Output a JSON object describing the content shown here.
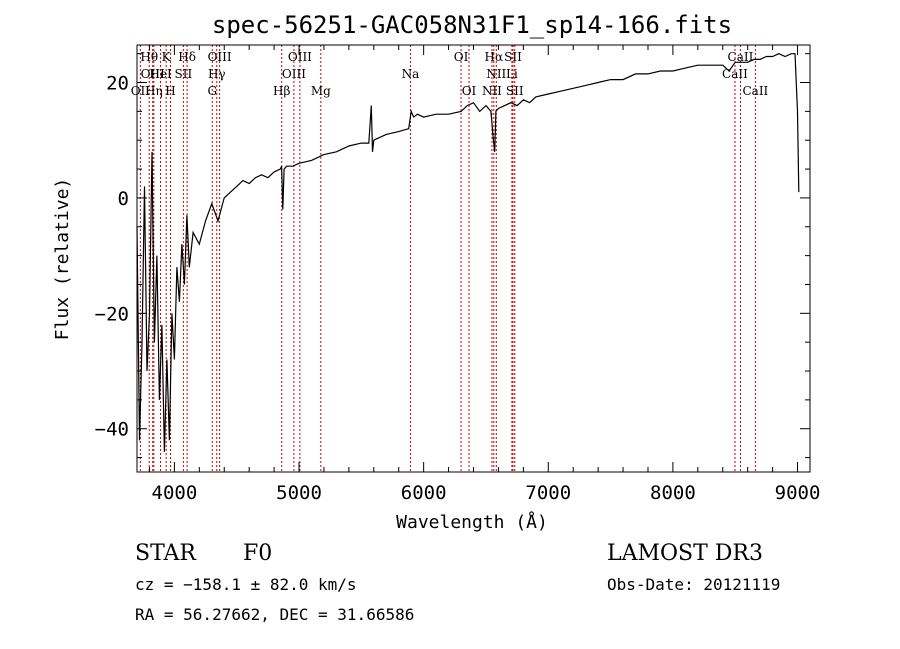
{
  "chart_data": {
    "type": "line",
    "title": "spec-56251-GAC058N31F1_sp14-166.fits",
    "xlabel": "Wavelength (Å)",
    "ylabel": "Flux (relative)",
    "xlim": [
      3700,
      9100
    ],
    "ylim": [
      -47.5,
      26.5
    ],
    "xticks": [
      4000,
      5000,
      6000,
      7000,
      8000,
      9000
    ],
    "xtick_labels": [
      "4000",
      "5000",
      "6000",
      "7000",
      "8000",
      "9000"
    ],
    "yticks": [
      -40,
      -20,
      0,
      20
    ],
    "ytick_labels": [
      "−40",
      "−20",
      "0",
      "20"
    ],
    "series": [
      {
        "name": "spectrum",
        "x": [
          3700,
          3720,
          3740,
          3760,
          3780,
          3800,
          3820,
          3840,
          3860,
          3880,
          3900,
          3920,
          3940,
          3960,
          3980,
          4000,
          4020,
          4040,
          4060,
          4080,
          4100,
          4120,
          4150,
          4200,
          4250,
          4300,
          4350,
          4400,
          4450,
          4500,
          4550,
          4600,
          4650,
          4700,
          4750,
          4800,
          4850,
          4860,
          4870,
          4880,
          4900,
          4950,
          5000,
          5100,
          5200,
          5300,
          5400,
          5500,
          5560,
          5580,
          5590,
          5600,
          5650,
          5700,
          5800,
          5880,
          5900,
          5920,
          5950,
          6000,
          6100,
          6200,
          6300,
          6350,
          6400,
          6450,
          6500,
          6540,
          6560,
          6570,
          6580,
          6600,
          6650,
          6700,
          6750,
          6800,
          6850,
          6900,
          7000,
          7100,
          7200,
          7300,
          7400,
          7500,
          7600,
          7700,
          7800,
          7900,
          8000,
          8100,
          8200,
          8300,
          8400,
          8450,
          8500,
          8550,
          8600,
          8650,
          8700,
          8750,
          8800,
          8850,
          8900,
          8950,
          8980,
          9000,
          9010
        ],
        "values": [
          -5,
          -42,
          -25,
          2,
          -30,
          -20,
          8,
          -25,
          -10,
          -35,
          -22,
          -44,
          -28,
          -42,
          -20,
          -28,
          -12,
          -18,
          -8,
          -15,
          -3,
          -12,
          -6,
          -8,
          -4,
          -1,
          -4,
          0,
          1,
          2,
          3,
          2.5,
          3.5,
          4,
          3.5,
          4.5,
          5,
          5.5,
          -2,
          5,
          5.5,
          5.5,
          6,
          6.5,
          7.5,
          8,
          9,
          9.5,
          9.5,
          16,
          8,
          10,
          10.5,
          11,
          11.5,
          12,
          15,
          14,
          14.5,
          14,
          14.5,
          14.5,
          15,
          16,
          16.5,
          15,
          16,
          15,
          10,
          8,
          15,
          15.5,
          16,
          16.5,
          16,
          17,
          16.5,
          17.5,
          18,
          18.5,
          19,
          19.5,
          20,
          20.5,
          20.5,
          21.5,
          21.5,
          22,
          22,
          22.5,
          23,
          23,
          23,
          22,
          23.5,
          23.5,
          23.5,
          24,
          24,
          24.5,
          24.5,
          25,
          24.5,
          25,
          25,
          15,
          1
        ]
      }
    ],
    "lines": [
      {
        "name": "OII",
        "wavelength": 3727,
        "label_row": 2
      },
      {
        "name": "Hθ",
        "wavelength": 3798,
        "label_row": 0
      },
      {
        "name": "OIII",
        "wavelength": 3826,
        "label_row": 1
      },
      {
        "name": "Hη",
        "wavelength": 3835,
        "label_row": 2
      },
      {
        "name": "HeI",
        "wavelength": 3889,
        "label_row": 1
      },
      {
        "name": "K",
        "wavelength": 3934,
        "label_row": 0
      },
      {
        "name": "H",
        "wavelength": 3969,
        "label_row": 2
      },
      {
        "name": "SII",
        "wavelength": 4072,
        "label_row": 1
      },
      {
        "name": "Hδ",
        "wavelength": 4102,
        "label_row": 0
      },
      {
        "name": "G",
        "wavelength": 4304,
        "label_row": 2
      },
      {
        "name": "Hγ",
        "wavelength": 4340,
        "label_row": 1
      },
      {
        "name": "OIII",
        "wavelength": 4363,
        "label_row": 0
      },
      {
        "name": "Hβ",
        "wavelength": 4861,
        "label_row": 2
      },
      {
        "name": "OIII",
        "wavelength": 4959,
        "label_row": 1
      },
      {
        "name": "OIII",
        "wavelength": 5007,
        "label_row": 0
      },
      {
        "name": "Mg",
        "wavelength": 5175,
        "label_row": 2
      },
      {
        "name": "Na",
        "wavelength": 5894,
        "label_row": 1
      },
      {
        "name": "OI",
        "wavelength": 6300,
        "label_row": 0
      },
      {
        "name": "OI",
        "wavelength": 6364,
        "label_row": 2
      },
      {
        "name": "NII",
        "wavelength": 6548,
        "label_row": 2
      },
      {
        "name": "Hα",
        "wavelength": 6563,
        "label_row": 0
      },
      {
        "name": "NII",
        "wavelength": 6583,
        "label_row": 1
      },
      {
        "name": "Li",
        "wavelength": 6708,
        "label_row": 1
      },
      {
        "name": "SII",
        "wavelength": 6717,
        "label_row": 0
      },
      {
        "name": "SII",
        "wavelength": 6731,
        "label_row": 2
      },
      {
        "name": "CaII",
        "wavelength": 8498,
        "label_row": 1
      },
      {
        "name": "CaII",
        "wavelength": 8542,
        "label_row": 0
      },
      {
        "name": "CaII",
        "wavelength": 8662,
        "label_row": 2
      }
    ]
  },
  "info": {
    "object_class": "STAR",
    "subclass": "F0",
    "survey": "LAMOST DR3",
    "cz": "cz = −158.1 ± 82.0 km/s",
    "obs_date": "Obs-Date: 20121119",
    "coords": "RA =  56.27662, DEC =  31.66586"
  },
  "colors": {
    "line_marker": "#cc0000",
    "spectrum": "#000000",
    "axes": "#000000"
  }
}
